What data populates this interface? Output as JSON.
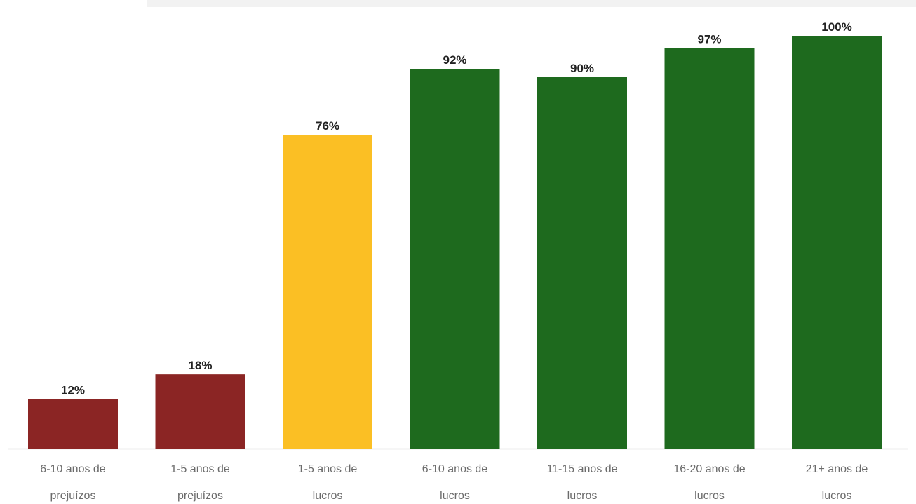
{
  "chart_data": {
    "type": "bar",
    "title": "",
    "xlabel": "",
    "ylabel": "",
    "ylim": [
      0,
      100
    ],
    "grid": false,
    "legend": "none",
    "categories": [
      [
        "6-10 anos de",
        "prejuízos"
      ],
      [
        "1-5 anos de",
        "prejuízos"
      ],
      [
        "1-5 anos de",
        "lucros"
      ],
      [
        "6-10 anos de",
        "lucros"
      ],
      [
        "11-15 anos de",
        "lucros"
      ],
      [
        "16-20 anos de",
        "lucros"
      ],
      [
        "21+ anos de",
        "lucros"
      ]
    ],
    "values": [
      12,
      18,
      76,
      92,
      90,
      97,
      100
    ],
    "value_labels": [
      "12%",
      "18%",
      "76%",
      "92%",
      "90%",
      "97%",
      "100%"
    ],
    "bar_colors": [
      "#8b2524",
      "#8b2524",
      "#fbbf24",
      "#1e6a1e",
      "#1e6a1e",
      "#1e6a1e",
      "#1e6a1e"
    ],
    "baseline_color": "#d9d9d9"
  }
}
